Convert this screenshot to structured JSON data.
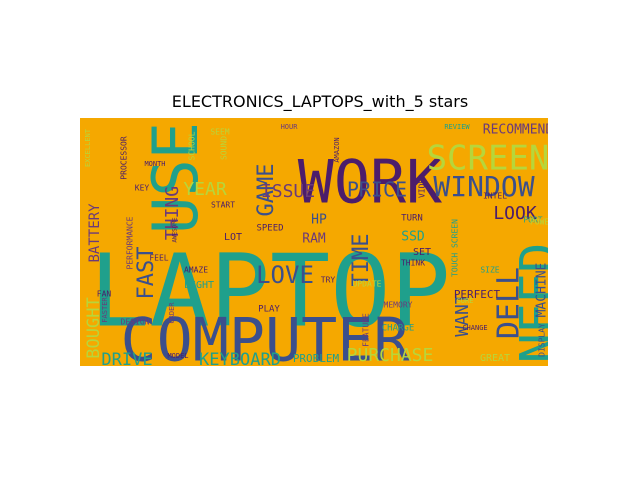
{
  "figure": {
    "title": "ELECTRONICS_LAPTOPS_with_5 stars",
    "background": "#ffffff",
    "cloud_background": "#f5a800"
  },
  "palette": {
    "teal": "#1fa08c",
    "navy": "#3b4f8c",
    "purple": "#4b1d6b",
    "lime": "#b7d63a",
    "plum": "#6b3a7a"
  },
  "words": [
    {
      "text": "LAPTOP",
      "color": "teal"
    },
    {
      "text": "COMPUTER",
      "color": "navy"
    },
    {
      "text": "USE",
      "color": "teal"
    },
    {
      "text": "WORK",
      "color": "purple"
    },
    {
      "text": "NEED",
      "color": "teal"
    },
    {
      "text": "SCREEN",
      "color": "lime"
    },
    {
      "text": "WINDOW",
      "color": "navy"
    },
    {
      "text": "DELL",
      "color": "navy"
    },
    {
      "text": "LOVE",
      "color": "navy"
    },
    {
      "text": "FAST",
      "color": "navy"
    },
    {
      "text": "GAME",
      "color": "navy"
    },
    {
      "text": "THING",
      "color": "plum"
    },
    {
      "text": "TIME",
      "color": "navy"
    },
    {
      "text": "PRICE",
      "color": "navy"
    },
    {
      "text": "ISSUE",
      "color": "plum"
    },
    {
      "text": "YEAR",
      "color": "lime"
    },
    {
      "text": "KEYBOARD",
      "color": "teal"
    },
    {
      "text": "DRIVE",
      "color": "teal"
    },
    {
      "text": "PURCHASE",
      "color": "lime"
    },
    {
      "text": "WANT",
      "color": "navy"
    },
    {
      "text": "LOOK",
      "color": "purple"
    },
    {
      "text": "RECOMMEND",
      "color": "plum"
    },
    {
      "text": "BOUGHT",
      "color": "lime"
    },
    {
      "text": "BATTERY",
      "color": "plum"
    },
    {
      "text": "MACHINE",
      "color": "navy"
    },
    {
      "text": "SSD",
      "color": "teal"
    },
    {
      "text": "HP",
      "color": "navy"
    },
    {
      "text": "RAM",
      "color": "plum"
    },
    {
      "text": "PERFECT",
      "color": "purple"
    },
    {
      "text": "GREAT",
      "color": "lime"
    },
    {
      "text": "PROBLEM",
      "color": "teal"
    },
    {
      "text": "LIGHT",
      "color": "teal"
    },
    {
      "text": "PLAY",
      "color": "purple"
    },
    {
      "text": "SPEED",
      "color": "purple"
    },
    {
      "text": "LOT",
      "color": "purple"
    },
    {
      "text": "MEMORY",
      "color": "plum"
    },
    {
      "text": "CHARGE",
      "color": "teal"
    },
    {
      "text": "DESIGN",
      "color": "plum"
    },
    {
      "text": "PERFORMANCE",
      "color": "plum"
    },
    {
      "text": "PROCESSOR",
      "color": "purple"
    },
    {
      "text": "TOUCH SCREEN",
      "color": "teal"
    },
    {
      "text": "DISPLAY",
      "color": "navy"
    },
    {
      "text": "INTEL",
      "color": "purple"
    },
    {
      "text": "PORT",
      "color": "teal"
    },
    {
      "text": "POWER",
      "color": "lime"
    },
    {
      "text": "SET",
      "color": "purple"
    },
    {
      "text": "TURN",
      "color": "purple"
    },
    {
      "text": "THINK",
      "color": "purple"
    },
    {
      "text": "UPDATE",
      "color": "lime"
    },
    {
      "text": "START",
      "color": "purple"
    },
    {
      "text": "FEEL",
      "color": "purple"
    },
    {
      "text": "AMAZE",
      "color": "purple"
    },
    {
      "text": "MODEL",
      "color": "purple"
    },
    {
      "text": "SIZE",
      "color": "teal"
    },
    {
      "text": "TRY",
      "color": "purple"
    },
    {
      "text": "REVIEW",
      "color": "teal"
    },
    {
      "text": "KEY",
      "color": "purple"
    },
    {
      "text": "MONTH",
      "color": "purple"
    },
    {
      "text": "SOUND",
      "color": "lime"
    },
    {
      "text": "HOUR",
      "color": "plum"
    },
    {
      "text": "VIDEO",
      "color": "purple"
    },
    {
      "text": "FAN",
      "color": "purple"
    },
    {
      "text": "FASTER",
      "color": "plum"
    },
    {
      "text": "FEATURE",
      "color": "plum"
    },
    {
      "text": "SURE",
      "color": "lime"
    },
    {
      "text": "ORDER",
      "color": "plum"
    },
    {
      "text": "AWESOME",
      "color": "purple"
    },
    {
      "text": "SEEM",
      "color": "lime"
    },
    {
      "text": "SCHOOL",
      "color": "lime"
    },
    {
      "text": "AMAZON",
      "color": "purple"
    },
    {
      "text": "EXCELLENT",
      "color": "lime"
    },
    {
      "text": "CHANGE",
      "color": "purple"
    }
  ]
}
